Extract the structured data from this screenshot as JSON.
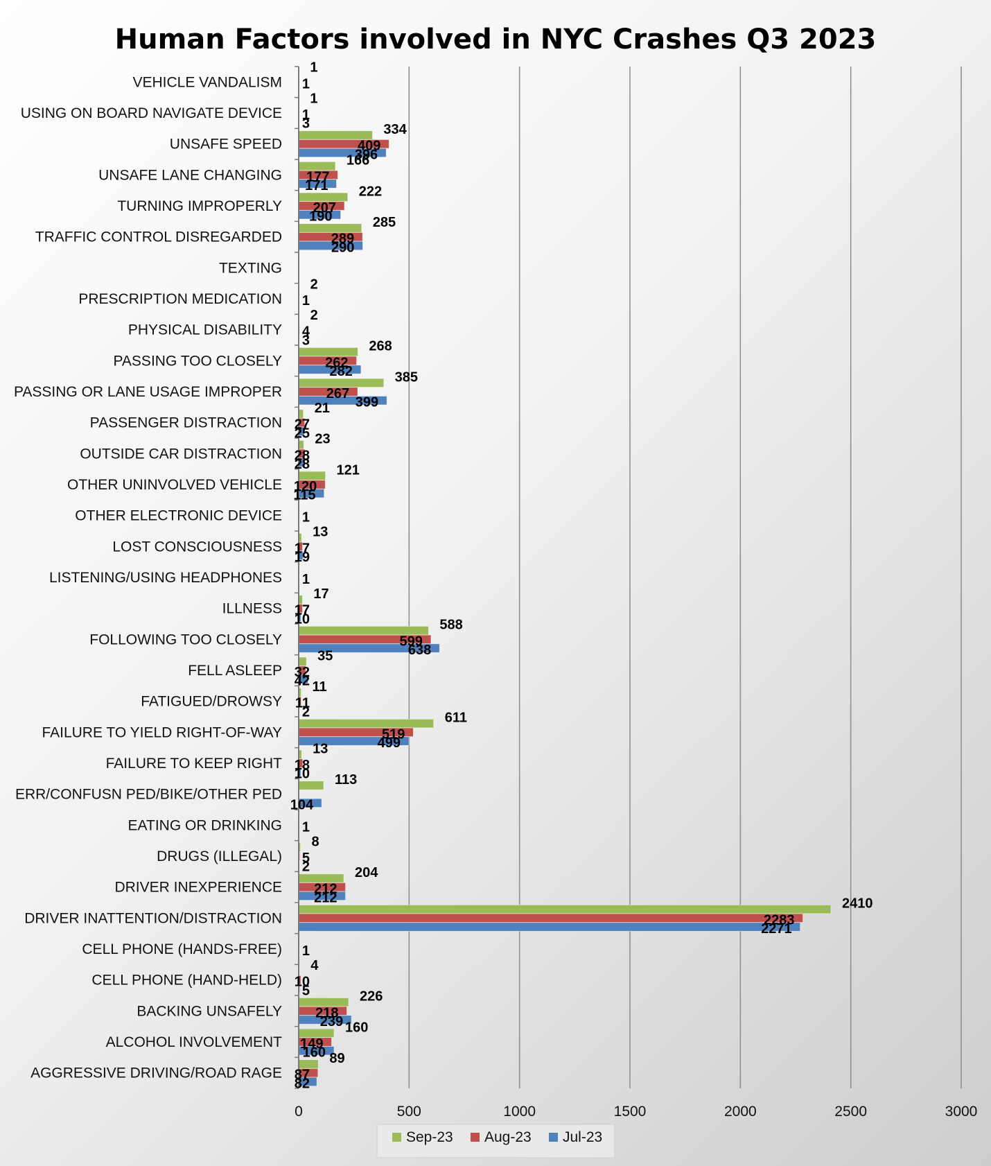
{
  "chart_data": {
    "type": "bar",
    "orientation": "horizontal",
    "title": "Human Factors involved in NYC Crashes Q3 2023",
    "xlabel": "",
    "ylabel": "",
    "xlim": [
      0,
      3000
    ],
    "x_ticks": [
      0,
      500,
      1000,
      1500,
      2000,
      2500,
      3000
    ],
    "grid": "vertical",
    "legend_position": "bottom",
    "categories": [
      "VEHICLE VANDALISM",
      "USING ON BOARD NAVIGATE DEVICE",
      "UNSAFE SPEED",
      "UNSAFE LANE CHANGING",
      "TURNING IMPROPERLY",
      "TRAFFIC CONTROL DISREGARDED",
      "TEXTING",
      "PRESCRIPTION MEDICATION",
      "PHYSICAL DISABILITY",
      "PASSING TOO CLOSELY",
      "PASSING OR LANE USAGE IMPROPER",
      "PASSENGER DISTRACTION",
      "OUTSIDE CAR DISTRACTION",
      "OTHER UNINVOLVED VEHICLE",
      "OTHER ELECTRONIC DEVICE",
      "LOST CONSCIOUSNESS",
      "LISTENING/USING HEADPHONES",
      "ILLNESS",
      "FOLLOWING TOO CLOSELY",
      "FELL ASLEEP",
      "FATIGUED/DROWSY",
      "FAILURE TO YIELD RIGHT-OF-WAY",
      "FAILURE TO KEEP RIGHT",
      "ERR/CONFUSN  PED/BIKE/OTHER PED",
      "EATING OR DRINKING",
      "DRUGS (ILLEGAL)",
      "DRIVER INEXPERIENCE",
      "DRIVER INATTENTION/DISTRACTION",
      "CELL PHONE (HANDS-FREE)",
      "CELL PHONE (HAND-HELD)",
      "BACKING UNSAFELY",
      "ALCOHOL INVOLVEMENT",
      "AGGRESSIVE DRIVING/ROAD RAGE"
    ],
    "series": [
      {
        "name": "Sep-23",
        "color": "#9BBB59",
        "values": [
          1,
          1,
          334,
          166,
          222,
          285,
          null,
          2,
          2,
          268,
          385,
          21,
          23,
          121,
          null,
          13,
          null,
          17,
          588,
          35,
          11,
          611,
          13,
          113,
          null,
          8,
          204,
          2410,
          null,
          4,
          226,
          160,
          89
        ]
      },
      {
        "name": "Aug-23",
        "color": "#C0504D",
        "values": [
          1,
          1,
          409,
          177,
          207,
          289,
          null,
          1,
          4,
          262,
          267,
          27,
          28,
          120,
          1,
          17,
          1,
          17,
          599,
          32,
          11,
          519,
          18,
          null,
          1,
          5,
          212,
          2283,
          1,
          10,
          218,
          149,
          87
        ]
      },
      {
        "name": "Jul-23",
        "color": "#4F81BD",
        "values": [
          null,
          3,
          396,
          171,
          190,
          290,
          null,
          null,
          3,
          282,
          399,
          25,
          28,
          115,
          null,
          19,
          null,
          10,
          638,
          42,
          2,
          499,
          10,
          104,
          null,
          2,
          212,
          2271,
          null,
          5,
          239,
          160,
          82
        ]
      }
    ]
  }
}
